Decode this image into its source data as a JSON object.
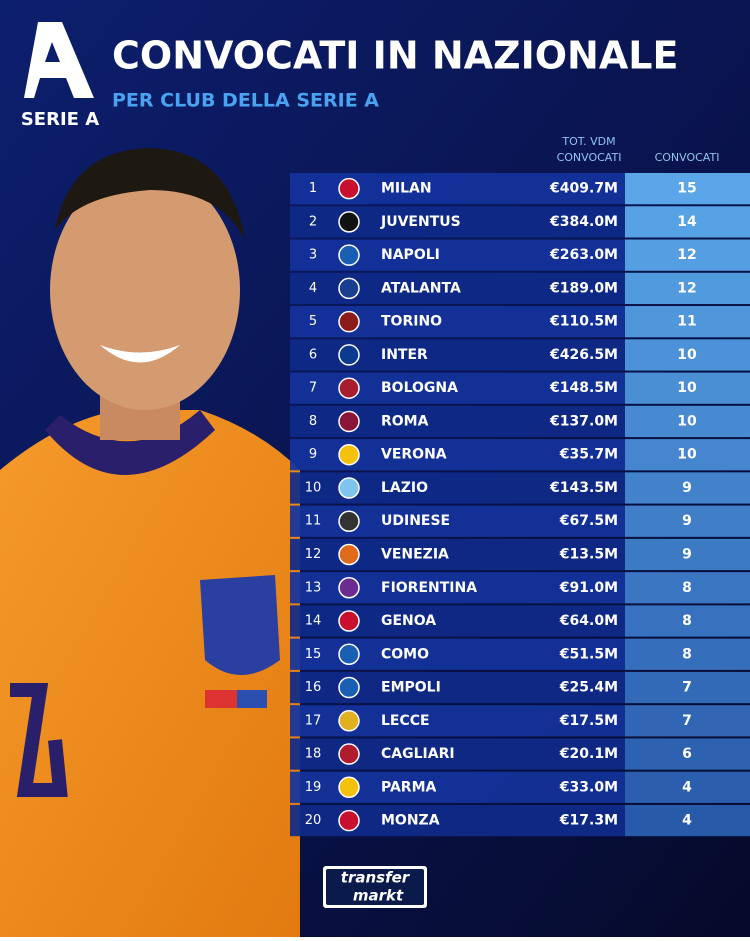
{
  "header": {
    "logo_text": "SERIE A",
    "title": "CONVOCATI IN NAZIONALE",
    "subtitle": "PER CLUB DELLA SERIE A"
  },
  "table": {
    "columns": [
      "TOT. VDM CONVOCATI",
      "CONVOCATI"
    ],
    "rows": [
      [
        1,
        "MILAN",
        "€409.7M",
        15
      ],
      [
        2,
        "JUVENTUS",
        "€384.0M",
        14
      ],
      [
        3,
        "NAPOLI",
        "€263.0M",
        12
      ],
      [
        4,
        "ATALANTA",
        "€189.0M",
        12
      ],
      [
        5,
        "TORINO",
        "€110.5M",
        11
      ],
      [
        6,
        "INTER",
        "€426.5M",
        10
      ],
      [
        7,
        "BOLOGNA",
        "€148.5M",
        10
      ],
      [
        8,
        "ROMA",
        "€137.0M",
        10
      ],
      [
        9,
        "VERONA",
        "€35.7M",
        10
      ],
      [
        10,
        "LAZIO",
        "€143.5M",
        9
      ],
      [
        11,
        "UDINESE",
        "€67.5M",
        9
      ],
      [
        12,
        "VENEZIA",
        "€13.5M",
        9
      ],
      [
        13,
        "FIORENTINA",
        "€91.0M",
        8
      ],
      [
        14,
        "GENOA",
        "€64.0M",
        8
      ],
      [
        15,
        "COMO",
        "€51.5M",
        8
      ],
      [
        16,
        "EMPOLI",
        "€25.4M",
        7
      ],
      [
        17,
        "LECCE",
        "€17.5M",
        7
      ],
      [
        18,
        "CAGLIARI",
        "€20.1M",
        6
      ],
      [
        19,
        "PARMA",
        "€33.0M",
        4
      ],
      [
        20,
        "MONZA",
        "€17.3M",
        4
      ]
    ]
  },
  "footer": {
    "brand_top": "transfer",
    "brand_bottom": "markt"
  }
}
